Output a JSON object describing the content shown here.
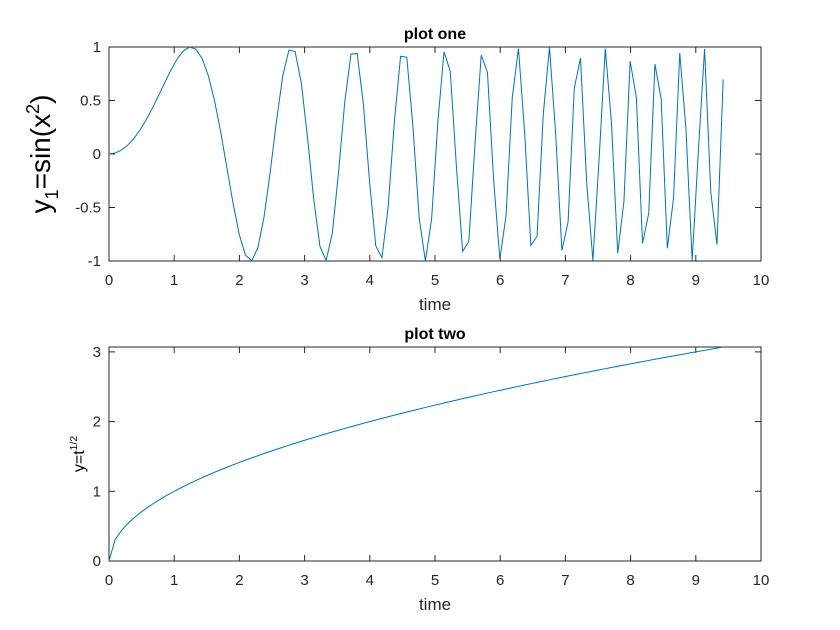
{
  "chart_data": [
    {
      "type": "line",
      "title": "plot one",
      "xlabel": "time",
      "ylabel": {
        "base": "y",
        "sub": "1",
        "mid": "=sin(x",
        "sup": "2",
        "tail": ")"
      },
      "xlim": [
        0,
        10
      ],
      "ylim": [
        -1,
        1
      ],
      "xticks": [
        "0",
        "1",
        "2",
        "3",
        "4",
        "5",
        "6",
        "7",
        "8",
        "9",
        "10"
      ],
      "yticks": [
        "-1",
        "-0.5",
        "0",
        "0.5",
        "1"
      ],
      "series": [
        {
          "function": "sin(x^2)",
          "x_start": 0,
          "x_end": 9.42,
          "samples": 100,
          "color": "#0072BD"
        }
      ],
      "grid": false
    },
    {
      "type": "line",
      "title": "plot two",
      "xlabel": "time",
      "ylabel": {
        "base": "y=t",
        "sup": "1/2"
      },
      "xlim": [
        0,
        10
      ],
      "ylim": [
        0,
        3.07
      ],
      "xticks": [
        "0",
        "1",
        "2",
        "3",
        "4",
        "5",
        "6",
        "7",
        "8",
        "9",
        "10"
      ],
      "yticks": [
        "0",
        "1",
        "2",
        "3"
      ],
      "series": [
        {
          "function": "sqrt(t)",
          "x_start": 0,
          "x_end": 9.42,
          "samples": 100,
          "color": "#0072BD"
        }
      ],
      "grid": false
    }
  ]
}
